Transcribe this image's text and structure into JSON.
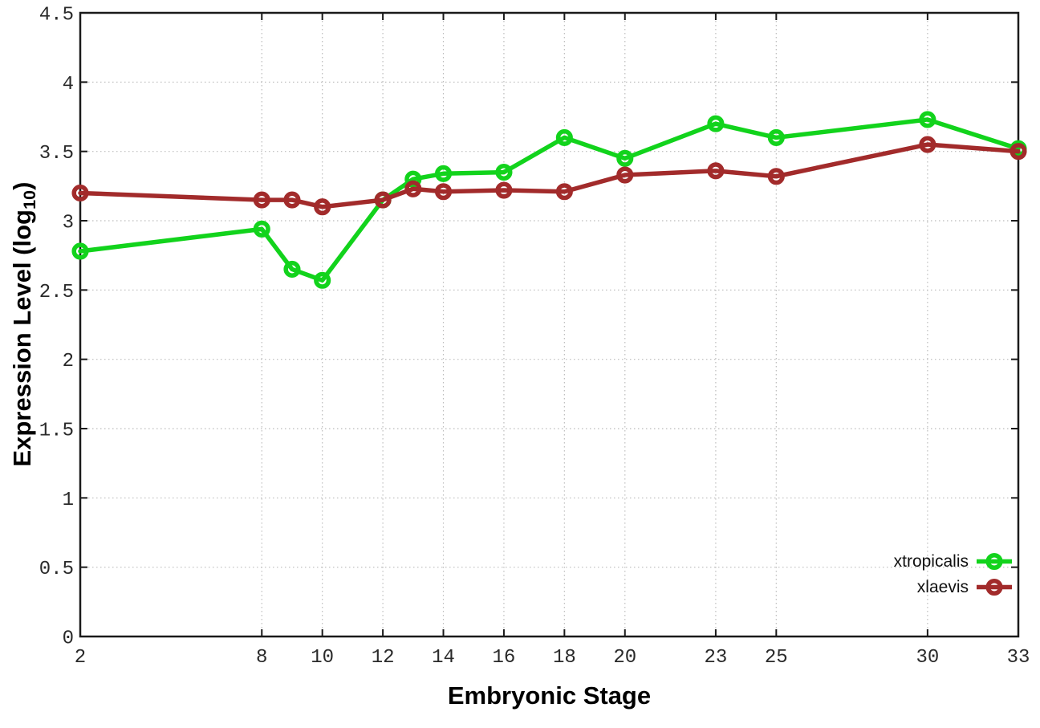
{
  "chart_data": {
    "type": "line",
    "title": "",
    "xlabel": "Embryonic Stage",
    "ylabel": "Expression Level (log10)",
    "ylabel_parts": {
      "pre": "Expression Level (log",
      "sub": "10",
      "post": ")"
    },
    "xlim": [
      2,
      33
    ],
    "ylim": [
      0,
      4.5
    ],
    "x_ticks": [
      2,
      8,
      10,
      12,
      14,
      16,
      18,
      20,
      23,
      25,
      30,
      33
    ],
    "x_tick_labels": [
      "2",
      "8",
      "10",
      "12",
      "14",
      "16",
      "18",
      "20",
      "23",
      "25",
      "30",
      "33"
    ],
    "y_ticks": [
      0,
      0.5,
      1,
      1.5,
      2,
      2.5,
      3,
      3.5,
      4,
      4.5
    ],
    "y_tick_labels": [
      "0",
      "0.5",
      "1",
      "1.5",
      "2",
      "2.5",
      "3",
      "3.5",
      "4",
      "4.5"
    ],
    "grid": true,
    "legend_position": "inside bottom-right",
    "x": [
      2,
      8,
      9,
      10,
      12,
      13,
      14,
      16,
      18,
      20,
      23,
      25,
      30,
      33
    ],
    "series": [
      {
        "name": "xtropicalis",
        "color": "#12d31c",
        "values": [
          2.78,
          2.94,
          2.65,
          2.57,
          3.15,
          3.3,
          3.34,
          3.35,
          3.6,
          3.45,
          3.7,
          3.6,
          3.73,
          3.52
        ]
      },
      {
        "name": "xlaevis",
        "color": "#a22b2b",
        "values": [
          3.2,
          3.15,
          3.15,
          3.1,
          3.15,
          3.23,
          3.21,
          3.22,
          3.21,
          3.33,
          3.36,
          3.32,
          3.55,
          3.5
        ]
      }
    ]
  },
  "colors": {
    "background": "#ffffff",
    "grid": "#bcbcbc",
    "axis": "#1a1a1a",
    "tick_text": "#2a2a2a"
  }
}
